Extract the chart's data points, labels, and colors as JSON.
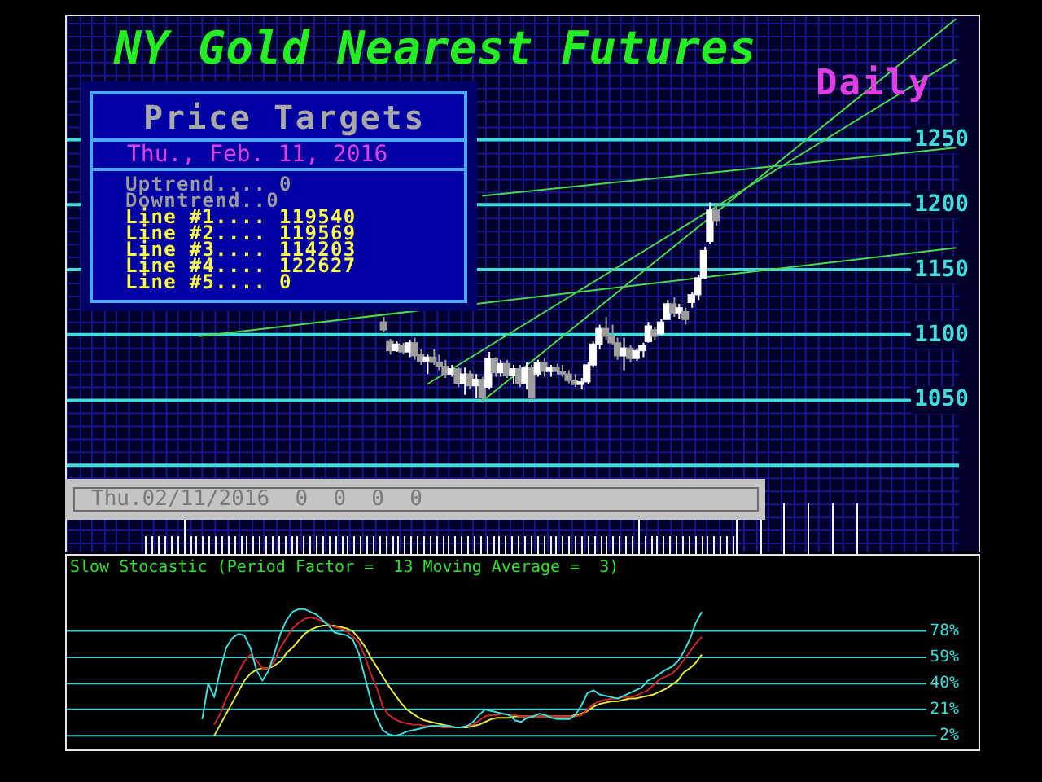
{
  "chart_data": [
    {
      "type": "candlestick",
      "title": "NY Gold Nearest Futures",
      "subtitle": "Daily",
      "categories": [
        null,
        null,
        null,
        null,
        null,
        null,
        null,
        null,
        null,
        null,
        null,
        null,
        null,
        null,
        null,
        null,
        null,
        null,
        null,
        null,
        null,
        null,
        null,
        null,
        null,
        null,
        null,
        null,
        null,
        null,
        null,
        null,
        null,
        null,
        null,
        null,
        null,
        null,
        null,
        null,
        null,
        null,
        null,
        null,
        null,
        null,
        null,
        null,
        null,
        null,
        null,
        null,
        null,
        null,
        null,
        null,
        null,
        null,
        null,
        null,
        null,
        null,
        null,
        null,
        null,
        null,
        null,
        null,
        null,
        null,
        null,
        null,
        null,
        null,
        null,
        null,
        null,
        null,
        null,
        null,
        null,
        null,
        null,
        null,
        null,
        null,
        null,
        null,
        null,
        null,
        null,
        null,
        null,
        null,
        null,
        null,
        null,
        null,
        null,
        null,
        null,
        null,
        null,
        null,
        null,
        null,
        null,
        null,
        null,
        null,
        null,
        null,
        null,
        null,
        null,
        null,
        null,
        null,
        null,
        null,
        null,
        null,
        null,
        null,
        null,
        null,
        null,
        null,
        null,
        null,
        null,
        null,
        null,
        null,
        null,
        null,
        null,
        null,
        null,
        null,
        null,
        null,
        null,
        null,
        null
      ],
      "ohlc": [
        null,
        null,
        null,
        null,
        null,
        null,
        null,
        null,
        null,
        null,
        null,
        null,
        null,
        null,
        null,
        null,
        null,
        null,
        null,
        null,
        null,
        null,
        null,
        null,
        null,
        null,
        null,
        null,
        null,
        null,
        null,
        null,
        null,
        null,
        null,
        null,
        null,
        null,
        null,
        null,
        null,
        null,
        null,
        null,
        null,
        null,
        null,
        null,
        null,
        null,
        null,
        [
          1110,
          1114,
          1102,
          1104
        ],
        [
          1095,
          1097,
          1085,
          1088
        ],
        [
          1088,
          1095,
          1087,
          1093
        ],
        [
          1092,
          1094,
          1085,
          1087
        ],
        [
          1087,
          1096,
          1083,
          1094
        ],
        [
          1094,
          1098,
          1081,
          1084
        ],
        [
          1085,
          1089,
          1077,
          1080
        ],
        [
          1080,
          1085,
          1070,
          1083
        ],
        [
          1083,
          1089,
          1077,
          1079
        ],
        [
          1079,
          1085,
          1073,
          1076
        ],
        [
          1076,
          1081,
          1067,
          1070
        ],
        [
          1070,
          1077,
          1068,
          1074
        ],
        [
          1074,
          1075,
          1060,
          1063
        ],
        [
          1063,
          1075,
          1054,
          1070
        ],
        [
          1070,
          1073,
          1058,
          1061
        ],
        [
          1061,
          1070,
          1052,
          1066
        ],
        [
          1066,
          1068,
          1048,
          1052
        ],
        [
          1060,
          1087,
          1058,
          1082
        ],
        [
          1082,
          1083,
          1068,
          1071
        ],
        [
          1071,
          1081,
          1068,
          1078
        ],
        [
          1078,
          1081,
          1067,
          1069
        ],
        [
          1069,
          1077,
          1062,
          1074
        ],
        [
          1074,
          1077,
          1060,
          1063
        ],
        [
          1063,
          1079,
          1058,
          1075
        ],
        [
          1075,
          1077,
          1049,
          1052
        ],
        [
          1070,
          1081,
          1068,
          1079
        ],
        [
          1079,
          1082,
          1068,
          1072
        ],
        [
          1072,
          1077,
          1068,
          1075
        ],
        [
          1075,
          1078,
          1070,
          1072
        ],
        [
          1072,
          1077,
          1068,
          1070
        ],
        [
          1070,
          1073,
          1063,
          1065
        ],
        [
          1065,
          1070,
          1060,
          1062
        ],
        [
          1062,
          1067,
          1058,
          1064
        ],
        [
          1064,
          1079,
          1062,
          1077
        ],
        [
          1077,
          1095,
          1075,
          1093
        ],
        [
          1093,
          1108,
          1089,
          1105
        ],
        [
          1105,
          1114,
          1096,
          1099
        ],
        [
          1099,
          1108,
          1092,
          1094
        ],
        [
          1094,
          1098,
          1081,
          1084
        ],
        [
          1084,
          1098,
          1073,
          1090
        ],
        [
          1090,
          1092,
          1079,
          1082
        ],
        [
          1082,
          1090,
          1080,
          1088
        ],
        [
          1088,
          1094,
          1083,
          1092
        ],
        [
          1095,
          1110,
          1094,
          1107
        ],
        [
          1104,
          1106,
          1096,
          1099
        ],
        [
          1101,
          1112,
          1100,
          1110
        ],
        [
          1112,
          1127,
          1112,
          1124
        ],
        [
          1124,
          1129,
          1114,
          1117
        ],
        [
          1117,
          1124,
          1112,
          1121
        ],
        [
          1118,
          1121,
          1108,
          1112
        ],
        [
          1125,
          1133,
          1121,
          1131
        ],
        [
          1131,
          1146,
          1127,
          1144
        ],
        [
          1144,
          1168,
          1143,
          1165
        ],
        [
          1172,
          1202,
          1170,
          1196
        ],
        [
          1196,
          1200,
          1184,
          1188
        ],
        null,
        null,
        null,
        null,
        null,
        null,
        null,
        null,
        null,
        null,
        null,
        null,
        null,
        null,
        null,
        null,
        null,
        null,
        null,
        null,
        null,
        null,
        null,
        null,
        null,
        null,
        null,
        null,
        null,
        null,
        null,
        null,
        null,
        null,
        null,
        null,
        null,
        null,
        null
      ],
      "colors": [
        null,
        null,
        null,
        null,
        null,
        null,
        null,
        null,
        null,
        null,
        null,
        null,
        null,
        null,
        null,
        null,
        null,
        null,
        null,
        null,
        null,
        null,
        null,
        null,
        null,
        null,
        null,
        null,
        null,
        null,
        null,
        null,
        null,
        null,
        null,
        null,
        null,
        null,
        null,
        null,
        null,
        null,
        null,
        null,
        null,
        null,
        null,
        null,
        null,
        null,
        null,
        "#9e9e9e",
        "#9e9e9e",
        "#ffffff",
        "#9e9e9e",
        "#ffffff",
        "#9e9e9e",
        "#9e9e9e",
        "#ffffff",
        "#9e9e9e",
        "#9e9e9e",
        "#9e9e9e",
        "#ffffff",
        "#9e9e9e",
        "#ffffff",
        "#9e9e9e",
        "#ffffff",
        "#9e9e9e",
        "#ffffff",
        "#9e9e9e",
        "#ffffff",
        "#9e9e9e",
        "#ffffff",
        "#9e9e9e",
        "#ffffff",
        "#9e9e9e",
        "#ffffff",
        "#9e9e9e",
        "#ffffff",
        "#9e9e9e",
        "#9e9e9e",
        "#9e9e9e",
        "#9e9e9e",
        "#ffffff",
        "#ffffff",
        "#ffffff",
        "#ffffff",
        "#9e9e9e",
        "#9e9e9e",
        "#9e9e9e",
        "#ffffff",
        "#9e9e9e",
        "#ffffff",
        "#ffffff",
        "#ffffff",
        "#9e9e9e",
        "#ffffff",
        "#ffffff",
        "#9e9e9e",
        "#ffffff",
        "#9e9e9e",
        "#ffffff",
        "#ffffff",
        "#ffffff",
        "#ffffff",
        "#9e9e9e",
        null,
        null,
        null,
        null,
        null,
        null,
        null,
        null,
        null,
        null,
        null,
        null,
        null,
        null,
        null,
        null,
        null,
        null,
        null,
        null,
        null,
        null,
        null,
        null,
        null,
        null,
        null,
        null,
        null,
        null,
        null,
        null,
        null,
        null,
        null,
        null,
        null,
        null,
        null
      ],
      "series": [
        {
          "type": "line",
          "color": "#4cd94c",
          "values": [
            null,
            null,
            null,
            null,
            null,
            null,
            null,
            null,
            null,
            null,
            null,
            null,
            null,
            null,
            null,
            null,
            null,
            null,
            null,
            null,
            null,
            1099,
            null,
            null,
            null,
            null,
            null,
            null,
            null,
            null,
            null,
            null,
            null,
            null,
            null,
            null,
            null,
            null,
            null,
            null,
            null,
            null,
            null,
            null,
            null,
            null,
            null,
            null,
            null,
            null,
            null,
            null,
            null,
            null,
            null,
            null,
            null,
            null,
            null,
            null,
            null,
            null,
            null,
            null,
            null,
            null,
            null,
            null,
            null,
            null,
            null,
            null,
            null,
            null,
            null,
            null,
            null,
            null,
            null,
            null,
            null,
            null,
            null,
            null,
            null,
            null,
            null,
            null,
            null,
            null,
            null,
            null,
            null,
            null,
            null,
            null,
            null,
            null,
            null,
            null,
            null,
            null,
            null,
            null,
            null,
            null,
            null,
            null,
            null,
            null,
            null,
            null,
            null,
            null,
            null,
            null,
            null,
            null,
            null,
            null,
            null,
            null,
            null,
            null,
            null,
            null,
            null,
            null,
            null,
            null,
            null,
            null,
            null,
            null,
            null,
            null,
            null,
            null,
            null,
            null,
            null,
            null,
            null,
            null,
            1167
          ]
        },
        {
          "type": "line",
          "color": "#4cd94c",
          "values": [
            null,
            null,
            null,
            null,
            null,
            null,
            null,
            null,
            null,
            null,
            null,
            null,
            null,
            null,
            null,
            null,
            null,
            null,
            null,
            null,
            null,
            null,
            null,
            null,
            null,
            null,
            null,
            null,
            null,
            null,
            null,
            null,
            null,
            null,
            null,
            null,
            null,
            null,
            null,
            null,
            null,
            null,
            null,
            null,
            null,
            null,
            null,
            null,
            null,
            null,
            null,
            null,
            null,
            null,
            null,
            null,
            null,
            null,
            null,
            null,
            null,
            null,
            null,
            null,
            null,
            null,
            null,
            1207,
            null,
            null,
            null,
            null,
            null,
            null,
            null,
            null,
            null,
            null,
            null,
            null,
            null,
            null,
            null,
            null,
            null,
            null,
            null,
            null,
            null,
            null,
            null,
            null,
            null,
            null,
            null,
            null,
            null,
            null,
            null,
            null,
            null,
            null,
            null,
            null,
            null,
            null,
            null,
            null,
            null,
            null,
            null,
            null,
            null,
            null,
            null,
            null,
            null,
            null,
            null,
            null,
            null,
            null,
            null,
            null,
            null,
            null,
            null,
            null,
            null,
            null,
            null,
            null,
            null,
            null,
            null,
            null,
            null,
            null,
            null,
            null,
            null,
            null,
            null,
            null,
            1244
          ]
        },
        {
          "type": "line",
          "color": "#4cd94c",
          "values": [
            null,
            null,
            null,
            null,
            null,
            null,
            null,
            null,
            null,
            null,
            null,
            null,
            null,
            null,
            null,
            null,
            null,
            null,
            null,
            null,
            null,
            null,
            null,
            null,
            null,
            null,
            null,
            null,
            null,
            null,
            null,
            null,
            null,
            null,
            null,
            null,
            null,
            null,
            null,
            null,
            null,
            null,
            null,
            null,
            null,
            null,
            null,
            null,
            null,
            null,
            null,
            null,
            null,
            null,
            null,
            null,
            null,
            null,
            1062,
            null,
            null,
            null,
            null,
            null,
            null,
            null,
            null,
            null,
            null,
            null,
            null,
            null,
            null,
            null,
            null,
            null,
            null,
            null,
            null,
            null,
            null,
            null,
            null,
            null,
            null,
            null,
            null,
            null,
            null,
            null,
            null,
            null,
            null,
            null,
            null,
            null,
            null,
            null,
            null,
            null,
            null,
            null,
            null,
            null,
            null,
            null,
            null,
            null,
            null,
            null,
            null,
            null,
            null,
            null,
            null,
            null,
            null,
            null,
            null,
            null,
            null,
            null,
            null,
            null,
            null,
            null,
            null,
            null,
            null,
            null,
            null,
            null,
            null,
            null,
            null,
            null,
            null,
            null,
            null,
            null,
            null,
            null,
            null,
            null,
            1312
          ]
        },
        {
          "type": "line",
          "color": "#4cd94c",
          "values": [
            null,
            null,
            null,
            null,
            null,
            null,
            null,
            null,
            null,
            null,
            null,
            null,
            null,
            null,
            null,
            null,
            null,
            null,
            null,
            null,
            null,
            null,
            null,
            null,
            null,
            null,
            null,
            null,
            null,
            null,
            null,
            null,
            null,
            null,
            null,
            null,
            null,
            null,
            null,
            null,
            null,
            null,
            null,
            null,
            null,
            null,
            null,
            null,
            null,
            null,
            null,
            null,
            null,
            null,
            null,
            null,
            null,
            null,
            null,
            null,
            null,
            null,
            null,
            null,
            null,
            null,
            null,
            1049,
            null,
            null,
            null,
            null,
            null,
            null,
            null,
            null,
            null,
            null,
            null,
            null,
            null,
            null,
            null,
            null,
            null,
            null,
            null,
            null,
            null,
            null,
            null,
            null,
            null,
            null,
            null,
            null,
            null,
            null,
            null,
            null,
            null,
            null,
            null,
            null,
            null,
            null,
            null,
            null,
            null,
            null,
            null,
            null,
            null,
            null,
            null,
            null,
            null,
            null,
            null,
            null,
            null,
            null,
            null,
            null,
            null,
            null,
            null,
            null,
            null,
            null,
            null,
            null,
            null,
            null,
            null,
            null,
            null,
            null,
            null,
            null,
            null,
            null,
            null,
            null,
            1343
          ]
        }
      ],
      "ylim": [
        933,
        1345
      ],
      "yticks": [
        {
          "value": 1000,
          "label": null
        },
        1050,
        1100,
        1150,
        1200,
        1250
      ],
      "grid": true,
      "tick_labels": "y",
      "annotations": [
        "Price Targets",
        "Thu., Feb. 11, 2016",
        "Uptrend.... 0",
        "Downtrend..0",
        "Line #1.... 119540",
        "Line #2.... 119569",
        "Line #3.... 114203",
        "Line #4.... 122627",
        "Line #5.... 0",
        "Thu.02/11/2016  0  0  0  0"
      ]
    },
    {
      "type": "line",
      "title": "Slow Stocastic (Period Factor =  13 Moving Average =  3)",
      "categories": [
        null,
        null,
        null,
        null,
        null,
        null,
        null,
        null,
        null,
        null,
        null,
        null,
        null,
        null,
        null,
        null,
        null,
        null,
        null,
        null,
        null,
        null,
        null,
        null,
        null,
        null,
        null,
        null,
        null,
        null,
        null,
        null,
        null,
        null,
        null,
        null,
        null,
        null,
        null,
        null,
        null,
        null,
        null,
        null,
        null,
        null,
        null,
        null,
        null,
        null,
        null,
        null,
        null,
        null,
        null,
        null,
        null,
        null,
        null,
        null,
        null,
        null,
        null,
        null,
        null,
        null,
        null,
        null,
        null,
        null,
        null,
        null,
        null,
        null,
        null,
        null,
        null,
        null,
        null,
        null,
        null,
        null,
        null,
        null,
        null,
        null,
        null,
        null,
        null,
        null,
        null,
        null,
        null,
        null,
        null,
        null,
        null,
        null,
        null,
        null,
        null,
        null,
        null,
        null,
        null,
        null,
        null,
        null,
        null,
        null,
        null,
        null,
        null,
        null,
        null,
        null,
        null,
        null,
        null,
        null,
        null,
        null,
        null,
        null,
        null,
        null,
        null,
        null,
        null,
        null,
        null,
        null,
        null,
        null,
        null,
        null,
        null,
        null,
        null,
        null,
        null,
        null,
        null,
        null,
        null
      ],
      "series": [
        {
          "color": "#3fdcdc",
          "values": [
            null,
            null,
            null,
            null,
            null,
            null,
            null,
            null,
            null,
            null,
            null,
            null,
            null,
            null,
            null,
            null,
            null,
            null,
            null,
            null,
            null,
            null,
            14,
            40,
            30,
            50,
            66,
            73,
            76,
            75,
            66,
            50,
            42,
            49,
            62,
            76,
            86,
            92,
            94,
            94,
            92,
            90,
            86,
            82,
            77,
            76,
            75,
            72,
            62,
            45,
            28,
            15,
            6,
            3,
            2,
            3,
            5,
            6,
            7,
            8,
            9,
            9,
            9,
            9,
            8,
            8,
            9,
            12,
            17,
            21,
            20,
            19,
            18,
            17,
            13,
            12,
            15,
            16,
            18,
            17,
            15,
            14,
            14,
            14,
            17,
            24,
            33,
            35,
            32,
            31,
            30,
            29,
            31,
            33,
            35,
            37,
            42,
            44,
            47,
            50,
            52,
            56,
            63,
            72,
            84,
            92,
            null,
            null,
            null,
            null,
            null,
            null,
            null,
            null,
            null,
            null,
            null,
            null,
            null,
            null,
            null,
            null,
            null,
            null,
            null,
            null,
            null,
            null,
            null,
            null,
            null,
            null,
            null,
            null,
            null,
            null,
            null,
            null,
            null,
            null,
            null,
            null,
            null,
            null,
            null
          ]
        },
        {
          "color": "#d02828",
          "values": [
            null,
            null,
            null,
            null,
            null,
            null,
            null,
            null,
            null,
            null,
            null,
            null,
            null,
            null,
            null,
            null,
            null,
            null,
            null,
            null,
            null,
            null,
            null,
            null,
            10,
            18,
            29,
            38,
            48,
            56,
            61,
            57,
            51,
            51,
            56,
            66,
            73,
            80,
            84,
            87,
            88,
            87,
            85,
            83,
            81,
            80,
            78,
            74,
            70,
            60,
            47,
            37,
            23,
            17,
            14,
            12,
            11,
            10,
            10,
            9,
            9,
            9,
            8,
            8,
            8,
            8,
            9,
            10,
            13,
            16,
            17,
            17,
            18,
            17,
            17,
            16,
            16,
            16,
            16,
            16,
            16,
            16,
            16,
            16,
            16,
            17,
            21,
            25,
            27,
            28,
            29,
            29,
            30,
            30,
            31,
            33,
            35,
            39,
            43,
            45,
            47,
            51,
            57,
            63,
            69,
            74,
            null,
            null,
            null,
            null,
            null,
            null,
            null,
            null,
            null,
            null,
            null,
            null,
            null,
            null,
            null,
            null,
            null,
            null,
            null,
            null,
            null,
            null,
            null,
            null,
            null,
            null,
            null,
            null,
            null,
            null,
            null,
            null,
            null,
            null,
            null,
            null,
            null,
            null,
            null
          ]
        },
        {
          "color": "#e8e840",
          "values": [
            null,
            null,
            null,
            null,
            null,
            null,
            null,
            null,
            null,
            null,
            null,
            null,
            null,
            null,
            null,
            null,
            null,
            null,
            null,
            null,
            null,
            null,
            null,
            null,
            2,
            10,
            18,
            26,
            34,
            42,
            47,
            50,
            51,
            51,
            53,
            56,
            62,
            66,
            71,
            76,
            79,
            81,
            82,
            82,
            82,
            81,
            80,
            78,
            73,
            67,
            59,
            52,
            45,
            38,
            32,
            26,
            21,
            18,
            15,
            13,
            12,
            11,
            10,
            9,
            8,
            8,
            8,
            9,
            10,
            12,
            14,
            15,
            15,
            15,
            16,
            16,
            16,
            16,
            16,
            16,
            16,
            16,
            16,
            16,
            17,
            18,
            20,
            23,
            25,
            26,
            27,
            27,
            28,
            29,
            29,
            30,
            31,
            32,
            34,
            36,
            39,
            42,
            48,
            51,
            55,
            61,
            null,
            null,
            null,
            null,
            null,
            null,
            null,
            null,
            null,
            null,
            null,
            null,
            null,
            null,
            null,
            null,
            null,
            null,
            null,
            null,
            null,
            null,
            null,
            null,
            null,
            null,
            null,
            null,
            null,
            null,
            null,
            null,
            null,
            null,
            null,
            null,
            null,
            null,
            null
          ]
        }
      ],
      "ylim": [
        -8,
        133
      ],
      "yticks": [
        {
          "value": 2,
          "label": "2%"
        },
        {
          "value": 21,
          "label": "21%"
        },
        {
          "value": 40,
          "label": "40%"
        },
        {
          "value": 59,
          "label": "59%"
        },
        {
          "value": 78,
          "label": "78%"
        }
      ],
      "grid": "y",
      "tick_labels": "y"
    }
  ]
}
